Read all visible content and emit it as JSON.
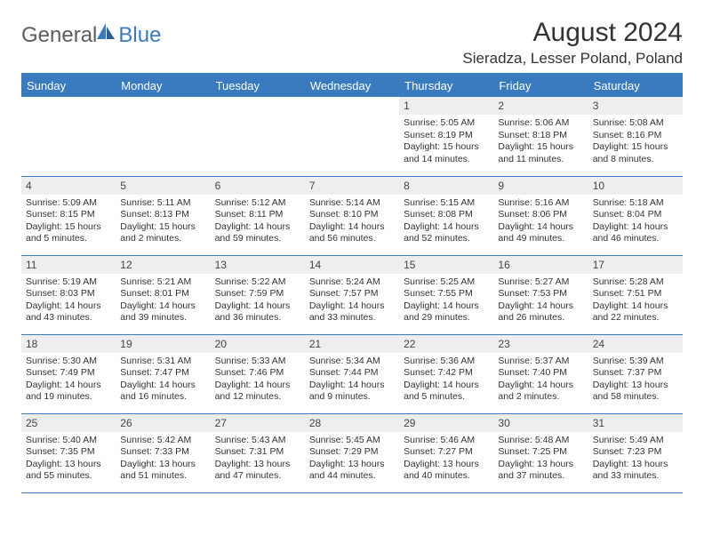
{
  "brand": {
    "name_a": "General",
    "name_b": "Blue"
  },
  "header": {
    "month_title": "August 2024",
    "location": "Sieradza, Lesser Poland, Poland"
  },
  "colors": {
    "accent": "#3a7bbf",
    "header_text": "#ffffff",
    "daynum_bg": "#eeeeee",
    "body_text": "#333333",
    "logo_gray": "#5c5c5c"
  },
  "daynames": [
    "Sunday",
    "Monday",
    "Tuesday",
    "Wednesday",
    "Thursday",
    "Friday",
    "Saturday"
  ],
  "weeks": [
    [
      {
        "n": "",
        "sr": "",
        "ss": "",
        "dl": "",
        "empty": true
      },
      {
        "n": "",
        "sr": "",
        "ss": "",
        "dl": "",
        "empty": true
      },
      {
        "n": "",
        "sr": "",
        "ss": "",
        "dl": "",
        "empty": true
      },
      {
        "n": "",
        "sr": "",
        "ss": "",
        "dl": "",
        "empty": true
      },
      {
        "n": "1",
        "sr": "Sunrise: 5:05 AM",
        "ss": "Sunset: 8:19 PM",
        "dl": "Daylight: 15 hours and 14 minutes."
      },
      {
        "n": "2",
        "sr": "Sunrise: 5:06 AM",
        "ss": "Sunset: 8:18 PM",
        "dl": "Daylight: 15 hours and 11 minutes."
      },
      {
        "n": "3",
        "sr": "Sunrise: 5:08 AM",
        "ss": "Sunset: 8:16 PM",
        "dl": "Daylight: 15 hours and 8 minutes."
      }
    ],
    [
      {
        "n": "4",
        "sr": "Sunrise: 5:09 AM",
        "ss": "Sunset: 8:15 PM",
        "dl": "Daylight: 15 hours and 5 minutes."
      },
      {
        "n": "5",
        "sr": "Sunrise: 5:11 AM",
        "ss": "Sunset: 8:13 PM",
        "dl": "Daylight: 15 hours and 2 minutes."
      },
      {
        "n": "6",
        "sr": "Sunrise: 5:12 AM",
        "ss": "Sunset: 8:11 PM",
        "dl": "Daylight: 14 hours and 59 minutes."
      },
      {
        "n": "7",
        "sr": "Sunrise: 5:14 AM",
        "ss": "Sunset: 8:10 PM",
        "dl": "Daylight: 14 hours and 56 minutes."
      },
      {
        "n": "8",
        "sr": "Sunrise: 5:15 AM",
        "ss": "Sunset: 8:08 PM",
        "dl": "Daylight: 14 hours and 52 minutes."
      },
      {
        "n": "9",
        "sr": "Sunrise: 5:16 AM",
        "ss": "Sunset: 8:06 PM",
        "dl": "Daylight: 14 hours and 49 minutes."
      },
      {
        "n": "10",
        "sr": "Sunrise: 5:18 AM",
        "ss": "Sunset: 8:04 PM",
        "dl": "Daylight: 14 hours and 46 minutes."
      }
    ],
    [
      {
        "n": "11",
        "sr": "Sunrise: 5:19 AM",
        "ss": "Sunset: 8:03 PM",
        "dl": "Daylight: 14 hours and 43 minutes."
      },
      {
        "n": "12",
        "sr": "Sunrise: 5:21 AM",
        "ss": "Sunset: 8:01 PM",
        "dl": "Daylight: 14 hours and 39 minutes."
      },
      {
        "n": "13",
        "sr": "Sunrise: 5:22 AM",
        "ss": "Sunset: 7:59 PM",
        "dl": "Daylight: 14 hours and 36 minutes."
      },
      {
        "n": "14",
        "sr": "Sunrise: 5:24 AM",
        "ss": "Sunset: 7:57 PM",
        "dl": "Daylight: 14 hours and 33 minutes."
      },
      {
        "n": "15",
        "sr": "Sunrise: 5:25 AM",
        "ss": "Sunset: 7:55 PM",
        "dl": "Daylight: 14 hours and 29 minutes."
      },
      {
        "n": "16",
        "sr": "Sunrise: 5:27 AM",
        "ss": "Sunset: 7:53 PM",
        "dl": "Daylight: 14 hours and 26 minutes."
      },
      {
        "n": "17",
        "sr": "Sunrise: 5:28 AM",
        "ss": "Sunset: 7:51 PM",
        "dl": "Daylight: 14 hours and 22 minutes."
      }
    ],
    [
      {
        "n": "18",
        "sr": "Sunrise: 5:30 AM",
        "ss": "Sunset: 7:49 PM",
        "dl": "Daylight: 14 hours and 19 minutes."
      },
      {
        "n": "19",
        "sr": "Sunrise: 5:31 AM",
        "ss": "Sunset: 7:47 PM",
        "dl": "Daylight: 14 hours and 16 minutes."
      },
      {
        "n": "20",
        "sr": "Sunrise: 5:33 AM",
        "ss": "Sunset: 7:46 PM",
        "dl": "Daylight: 14 hours and 12 minutes."
      },
      {
        "n": "21",
        "sr": "Sunrise: 5:34 AM",
        "ss": "Sunset: 7:44 PM",
        "dl": "Daylight: 14 hours and 9 minutes."
      },
      {
        "n": "22",
        "sr": "Sunrise: 5:36 AM",
        "ss": "Sunset: 7:42 PM",
        "dl": "Daylight: 14 hours and 5 minutes."
      },
      {
        "n": "23",
        "sr": "Sunrise: 5:37 AM",
        "ss": "Sunset: 7:40 PM",
        "dl": "Daylight: 14 hours and 2 minutes."
      },
      {
        "n": "24",
        "sr": "Sunrise: 5:39 AM",
        "ss": "Sunset: 7:37 PM",
        "dl": "Daylight: 13 hours and 58 minutes."
      }
    ],
    [
      {
        "n": "25",
        "sr": "Sunrise: 5:40 AM",
        "ss": "Sunset: 7:35 PM",
        "dl": "Daylight: 13 hours and 55 minutes."
      },
      {
        "n": "26",
        "sr": "Sunrise: 5:42 AM",
        "ss": "Sunset: 7:33 PM",
        "dl": "Daylight: 13 hours and 51 minutes."
      },
      {
        "n": "27",
        "sr": "Sunrise: 5:43 AM",
        "ss": "Sunset: 7:31 PM",
        "dl": "Daylight: 13 hours and 47 minutes."
      },
      {
        "n": "28",
        "sr": "Sunrise: 5:45 AM",
        "ss": "Sunset: 7:29 PM",
        "dl": "Daylight: 13 hours and 44 minutes."
      },
      {
        "n": "29",
        "sr": "Sunrise: 5:46 AM",
        "ss": "Sunset: 7:27 PM",
        "dl": "Daylight: 13 hours and 40 minutes."
      },
      {
        "n": "30",
        "sr": "Sunrise: 5:48 AM",
        "ss": "Sunset: 7:25 PM",
        "dl": "Daylight: 13 hours and 37 minutes."
      },
      {
        "n": "31",
        "sr": "Sunrise: 5:49 AM",
        "ss": "Sunset: 7:23 PM",
        "dl": "Daylight: 13 hours and 33 minutes."
      }
    ]
  ]
}
